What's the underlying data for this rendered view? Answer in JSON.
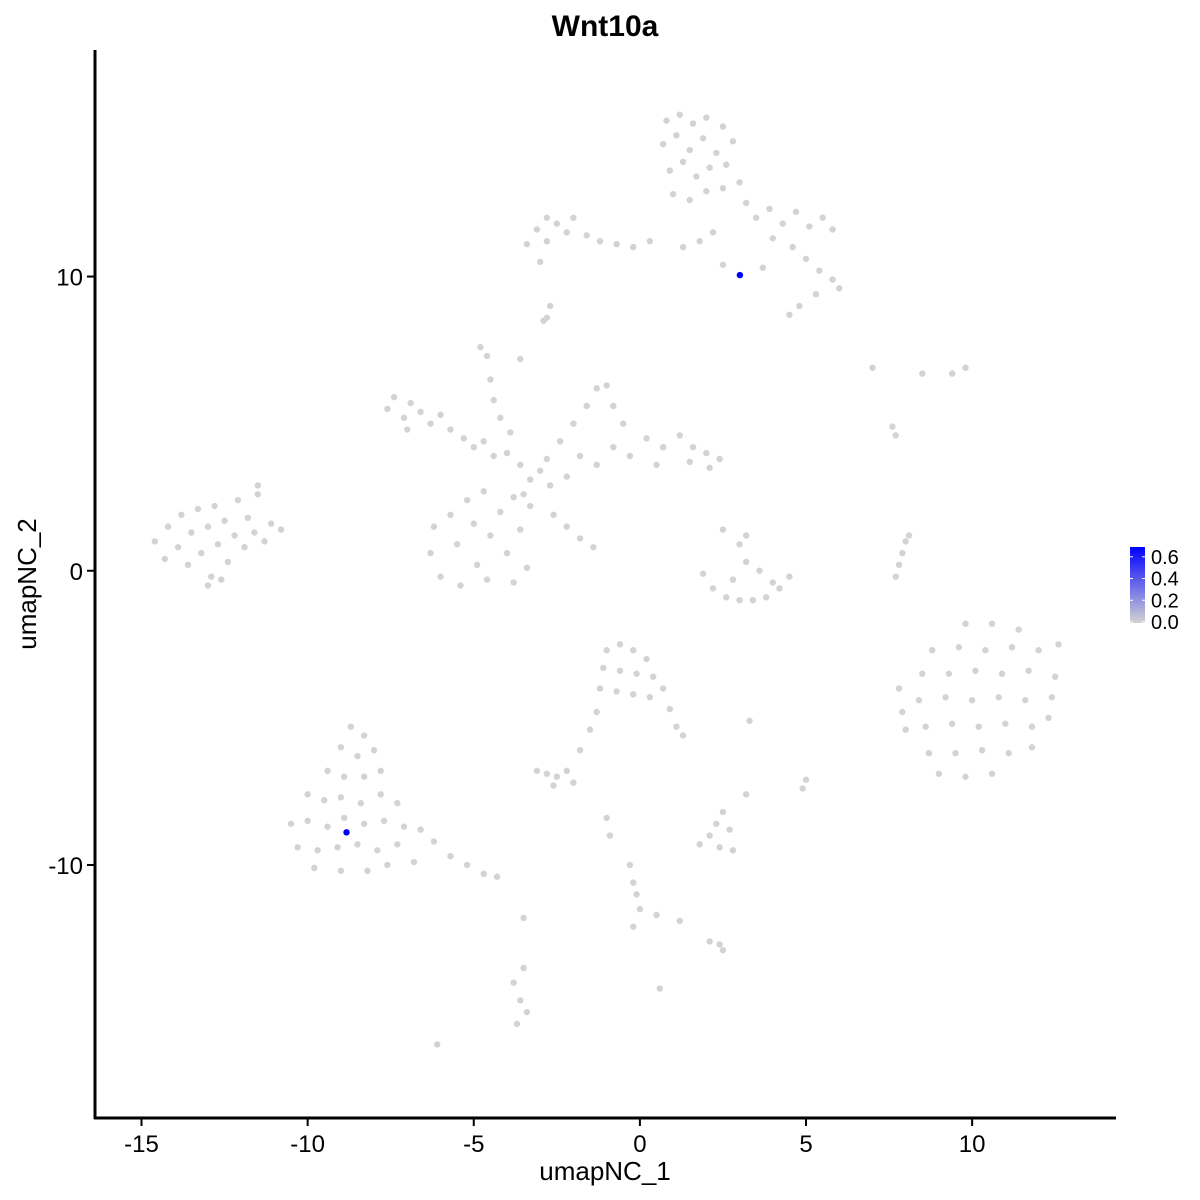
{
  "chart_data": {
    "type": "scatter",
    "title": "Wnt10a",
    "xlabel": "umapNC_1",
    "ylabel": "umapNC_2",
    "xlim": [
      -16.4,
      14.3
    ],
    "ylim": [
      -18.6,
      17.7
    ],
    "x_ticks": [
      -15,
      -10,
      -5,
      0,
      5,
      10
    ],
    "y_ticks": [
      -10,
      0,
      10
    ],
    "grid": false,
    "legend": {
      "position": "right",
      "type": "colorbar",
      "ticks": [
        "0.0",
        "0.2",
        "0.4",
        "0.6"
      ],
      "range": [
        0,
        0.69
      ],
      "low_color": "#d3d3d3",
      "high_color": "#0000ff"
    },
    "base_color": "#d3d3d3",
    "points": [
      [
        -14.6,
        1.0
      ],
      [
        -14.3,
        0.4
      ],
      [
        -14.2,
        1.5
      ],
      [
        -13.9,
        0.8
      ],
      [
        -13.8,
        1.9
      ],
      [
        -13.6,
        0.2
      ],
      [
        -13.5,
        1.3
      ],
      [
        -13.3,
        2.1
      ],
      [
        -13.2,
        0.6
      ],
      [
        -13.0,
        1.5
      ],
      [
        -12.9,
        -0.2
      ],
      [
        -12.8,
        2.2
      ],
      [
        -12.7,
        0.9
      ],
      [
        -12.5,
        1.7
      ],
      [
        -12.4,
        0.3
      ],
      [
        -12.2,
        1.2
      ],
      [
        -12.1,
        2.4
      ],
      [
        -11.9,
        0.8
      ],
      [
        -11.8,
        1.8
      ],
      [
        -11.6,
        1.3
      ],
      [
        -11.5,
        2.6
      ],
      [
        -11.3,
        1.0
      ],
      [
        -11.1,
        1.6
      ],
      [
        -10.8,
        1.4
      ],
      [
        -11.5,
        2.9
      ],
      [
        -13.0,
        -0.5
      ],
      [
        -12.6,
        -0.3
      ],
      [
        0.8,
        15.3
      ],
      [
        1.2,
        15.5
      ],
      [
        1.6,
        15.2
      ],
      [
        2.0,
        15.4
      ],
      [
        2.5,
        15.1
      ],
      [
        2.8,
        14.6
      ],
      [
        0.7,
        14.5
      ],
      [
        1.1,
        14.8
      ],
      [
        1.5,
        14.3
      ],
      [
        1.9,
        14.7
      ],
      [
        2.3,
        14.2
      ],
      [
        2.6,
        13.8
      ],
      [
        0.9,
        13.6
      ],
      [
        1.3,
        13.9
      ],
      [
        1.7,
        13.4
      ],
      [
        2.1,
        13.7
      ],
      [
        2.5,
        13.0
      ],
      [
        1.0,
        12.8
      ],
      [
        1.5,
        12.6
      ],
      [
        2.0,
        12.9
      ],
      [
        3.0,
        13.2
      ],
      [
        3.2,
        12.5
      ],
      [
        3.5,
        12.0
      ],
      [
        3.9,
        12.3
      ],
      [
        4.3,
        11.8
      ],
      [
        4.7,
        12.2
      ],
      [
        5.1,
        11.7
      ],
      [
        5.5,
        12.0
      ],
      [
        5.8,
        11.6
      ],
      [
        4.0,
        11.3
      ],
      [
        4.6,
        11.0
      ],
      [
        5.0,
        10.6
      ],
      [
        5.4,
        10.2
      ],
      [
        5.8,
        9.9
      ],
      [
        6.0,
        9.6
      ],
      [
        5.3,
        9.4
      ],
      [
        4.8,
        9.0
      ],
      [
        4.5,
        8.7
      ],
      [
        3.7,
        10.3
      ],
      [
        2.5,
        10.4
      ],
      [
        2.2,
        11.5
      ],
      [
        1.8,
        11.2
      ],
      [
        1.3,
        11.0
      ],
      [
        -3.4,
        11.1
      ],
      [
        -3.1,
        11.6
      ],
      [
        -2.8,
        12.0
      ],
      [
        -2.5,
        11.8
      ],
      [
        -2.2,
        11.5
      ],
      [
        -2.8,
        11.2
      ],
      [
        -2.0,
        12.0
      ],
      [
        -1.6,
        11.4
      ],
      [
        -1.2,
        11.2
      ],
      [
        -0.7,
        11.1
      ],
      [
        -0.2,
        11.0
      ],
      [
        0.3,
        11.2
      ],
      [
        -3.0,
        10.5
      ],
      [
        -2.7,
        9.0
      ],
      [
        -2.9,
        8.5
      ],
      [
        -7.6,
        5.5
      ],
      [
        -7.4,
        5.9
      ],
      [
        -7.1,
        5.2
      ],
      [
        -6.9,
        5.7
      ],
      [
        -6.6,
        5.4
      ],
      [
        -6.3,
        5.0
      ],
      [
        -6.0,
        5.3
      ],
      [
        -5.7,
        4.8
      ],
      [
        -5.3,
        4.5
      ],
      [
        -5.0,
        4.2
      ],
      [
        -4.7,
        4.4
      ],
      [
        -4.4,
        3.9
      ],
      [
        -4.0,
        4.0
      ],
      [
        -3.6,
        3.6
      ],
      [
        -7.0,
        4.8
      ],
      [
        -4.8,
        7.6
      ],
      [
        -4.6,
        7.3
      ],
      [
        -4.5,
        6.5
      ],
      [
        -4.4,
        5.8
      ],
      [
        -4.2,
        5.2
      ],
      [
        -3.9,
        4.7
      ],
      [
        -3.3,
        3.1
      ],
      [
        -3.0,
        3.4
      ],
      [
        -2.7,
        2.9
      ],
      [
        -3.5,
        2.6
      ],
      [
        -2.8,
        3.8
      ],
      [
        -2.4,
        4.4
      ],
      [
        -2.0,
        5.0
      ],
      [
        -1.6,
        5.6
      ],
      [
        -1.3,
        6.2
      ],
      [
        -1.0,
        6.3
      ],
      [
        -0.8,
        5.6
      ],
      [
        -0.5,
        5.0
      ],
      [
        -1.8,
        3.9
      ],
      [
        -1.3,
        3.6
      ],
      [
        -0.8,
        4.2
      ],
      [
        -0.3,
        3.9
      ],
      [
        0.2,
        4.5
      ],
      [
        0.7,
        4.2
      ],
      [
        1.2,
        4.6
      ],
      [
        1.6,
        4.2
      ],
      [
        2.0,
        4.0
      ],
      [
        2.4,
        3.8
      ],
      [
        2.1,
        3.5
      ],
      [
        1.5,
        3.7
      ],
      [
        0.5,
        3.6
      ],
      [
        -2.2,
        3.2
      ],
      [
        -6.2,
        1.5
      ],
      [
        -6.3,
        0.6
      ],
      [
        -6.0,
        -0.2
      ],
      [
        -5.7,
        1.9
      ],
      [
        -5.5,
        0.9
      ],
      [
        -5.4,
        -0.5
      ],
      [
        -5.0,
        1.6
      ],
      [
        -4.9,
        0.2
      ],
      [
        -4.6,
        -0.3
      ],
      [
        -4.5,
        1.2
      ],
      [
        -4.2,
        2.0
      ],
      [
        -4.0,
        0.6
      ],
      [
        -3.8,
        -0.4
      ],
      [
        -3.6,
        1.4
      ],
      [
        -3.4,
        0.1
      ],
      [
        -3.3,
        2.2
      ],
      [
        -5.2,
        2.4
      ],
      [
        -4.7,
        2.7
      ],
      [
        -3.8,
        2.5
      ],
      [
        -2.6,
        1.9
      ],
      [
        -2.2,
        1.5
      ],
      [
        -1.8,
        1.1
      ],
      [
        -1.4,
        0.8
      ],
      [
        1.9,
        -0.1
      ],
      [
        2.2,
        -0.6
      ],
      [
        2.6,
        -0.9
      ],
      [
        3.0,
        -1.0
      ],
      [
        3.4,
        -1.0
      ],
      [
        3.8,
        -0.9
      ],
      [
        4.2,
        -0.6
      ],
      [
        4.5,
        -0.2
      ],
      [
        2.8,
        -0.3
      ],
      [
        3.2,
        0.3
      ],
      [
        3.0,
        0.9
      ],
      [
        3.2,
        1.2
      ],
      [
        2.5,
        1.4
      ],
      [
        3.6,
        0.0
      ],
      [
        4.0,
        -0.4
      ],
      [
        9.8,
        -1.8
      ],
      [
        10.6,
        -1.8
      ],
      [
        11.4,
        -2.0
      ],
      [
        8.8,
        -2.7
      ],
      [
        9.6,
        -2.6
      ],
      [
        10.4,
        -2.7
      ],
      [
        11.2,
        -2.6
      ],
      [
        12.0,
        -2.7
      ],
      [
        12.6,
        -2.5
      ],
      [
        8.5,
        -3.5
      ],
      [
        9.3,
        -3.5
      ],
      [
        10.1,
        -3.4
      ],
      [
        10.9,
        -3.5
      ],
      [
        11.7,
        -3.4
      ],
      [
        12.5,
        -3.6
      ],
      [
        8.4,
        -4.4
      ],
      [
        9.2,
        -4.3
      ],
      [
        10.0,
        -4.4
      ],
      [
        10.8,
        -4.3
      ],
      [
        11.6,
        -4.4
      ],
      [
        12.4,
        -4.3
      ],
      [
        8.6,
        -5.3
      ],
      [
        9.4,
        -5.2
      ],
      [
        10.2,
        -5.3
      ],
      [
        11.0,
        -5.2
      ],
      [
        11.8,
        -5.3
      ],
      [
        12.3,
        -5.0
      ],
      [
        8.7,
        -6.2
      ],
      [
        9.5,
        -6.2
      ],
      [
        10.3,
        -6.1
      ],
      [
        11.1,
        -6.2
      ],
      [
        11.8,
        -6.0
      ],
      [
        9.0,
        -6.9
      ],
      [
        9.8,
        -7.0
      ],
      [
        10.6,
        -6.9
      ],
      [
        7.8,
        -4.0
      ],
      [
        7.9,
        -4.8
      ],
      [
        8.0,
        -5.4
      ],
      [
        -8.7,
        -5.3
      ],
      [
        -8.3,
        -5.6
      ],
      [
        -9.0,
        -6.0
      ],
      [
        -8.5,
        -6.3
      ],
      [
        -8.0,
        -6.1
      ],
      [
        -9.4,
        -6.8
      ],
      [
        -8.9,
        -7.0
      ],
      [
        -8.3,
        -7.0
      ],
      [
        -7.8,
        -6.8
      ],
      [
        -10.0,
        -7.6
      ],
      [
        -9.5,
        -7.8
      ],
      [
        -9.0,
        -7.7
      ],
      [
        -8.4,
        -7.9
      ],
      [
        -7.8,
        -7.6
      ],
      [
        -7.3,
        -7.9
      ],
      [
        -10.5,
        -8.6
      ],
      [
        -10.0,
        -8.5
      ],
      [
        -9.4,
        -8.7
      ],
      [
        -8.9,
        -8.4
      ],
      [
        -8.3,
        -8.6
      ],
      [
        -7.7,
        -8.5
      ],
      [
        -7.1,
        -8.7
      ],
      [
        -6.6,
        -8.8
      ],
      [
        -10.3,
        -9.4
      ],
      [
        -9.7,
        -9.5
      ],
      [
        -9.1,
        -9.4
      ],
      [
        -8.5,
        -9.3
      ],
      [
        -7.9,
        -9.5
      ],
      [
        -7.3,
        -9.3
      ],
      [
        -6.2,
        -9.2
      ],
      [
        -5.7,
        -9.7
      ],
      [
        -5.2,
        -10.0
      ],
      [
        -4.7,
        -10.3
      ],
      [
        -4.3,
        -10.4
      ],
      [
        -9.8,
        -10.1
      ],
      [
        -9.0,
        -10.2
      ],
      [
        -8.2,
        -10.2
      ],
      [
        -7.6,
        -10.0
      ],
      [
        -6.8,
        -9.9
      ],
      [
        -1.0,
        -2.7
      ],
      [
        -0.6,
        -2.5
      ],
      [
        -0.2,
        -2.7
      ],
      [
        0.2,
        -3.0
      ],
      [
        -1.1,
        -3.3
      ],
      [
        -0.6,
        -3.4
      ],
      [
        -0.1,
        -3.5
      ],
      [
        0.4,
        -3.6
      ],
      [
        -1.2,
        -4.0
      ],
      [
        -0.7,
        -4.1
      ],
      [
        -0.2,
        -4.2
      ],
      [
        0.3,
        -4.3
      ],
      [
        0.7,
        -4.0
      ],
      [
        0.9,
        -4.7
      ],
      [
        1.1,
        -5.3
      ],
      [
        1.3,
        -5.6
      ],
      [
        -1.3,
        -4.8
      ],
      [
        -1.5,
        -5.4
      ],
      [
        -1.8,
        -6.1
      ],
      [
        -3.1,
        -6.8
      ],
      [
        -2.8,
        -6.9
      ],
      [
        -2.5,
        -7.0
      ],
      [
        -2.2,
        -6.8
      ],
      [
        -2.6,
        -7.3
      ],
      [
        -2.0,
        -7.2
      ],
      [
        1.8,
        -9.3
      ],
      [
        2.1,
        -9.0
      ],
      [
        2.4,
        -9.4
      ],
      [
        2.7,
        -8.8
      ],
      [
        2.3,
        -8.6
      ],
      [
        2.8,
        -9.5
      ],
      [
        2.5,
        -8.2
      ],
      [
        3.2,
        -7.6
      ],
      [
        2.1,
        -12.6
      ],
      [
        2.4,
        -12.7
      ],
      [
        2.5,
        -12.9
      ],
      [
        -3.8,
        -14.0
      ],
      [
        -3.6,
        -14.6
      ],
      [
        -3.4,
        -15.0
      ],
      [
        -3.7,
        -15.4
      ],
      [
        -3.5,
        -13.5
      ],
      [
        -6.1,
        -16.1
      ],
      [
        0.6,
        -14.2
      ],
      [
        5.0,
        -7.1
      ],
      [
        4.9,
        -7.4
      ],
      [
        -0.3,
        -10.0
      ],
      [
        -0.2,
        -10.6
      ],
      [
        -0.1,
        -11.0
      ],
      [
        0.0,
        -11.5
      ],
      [
        -0.2,
        -12.1
      ],
      [
        0.5,
        -11.7
      ],
      [
        1.2,
        -11.9
      ],
      [
        -0.9,
        -9.0
      ],
      [
        -1.0,
        -8.4
      ],
      [
        7.8,
        0.2
      ],
      [
        7.9,
        0.6
      ],
      [
        8.0,
        1.0
      ],
      [
        8.1,
        1.2
      ],
      [
        7.7,
        -0.2
      ],
      [
        7.0,
        6.9
      ],
      [
        8.5,
        6.7
      ],
      [
        9.4,
        6.7
      ],
      [
        9.8,
        6.9
      ],
      [
        7.6,
        4.9
      ],
      [
        7.7,
        4.6
      ],
      [
        -3.6,
        7.2
      ],
      [
        -2.8,
        8.6
      ],
      [
        -3.5,
        -11.8
      ],
      [
        3.3,
        -5.1
      ]
    ],
    "expressing_points": [
      {
        "x": 3.01,
        "y": 10.05,
        "value": 0.69
      },
      {
        "x": -8.83,
        "y": -8.89,
        "value": 0.69
      }
    ]
  }
}
